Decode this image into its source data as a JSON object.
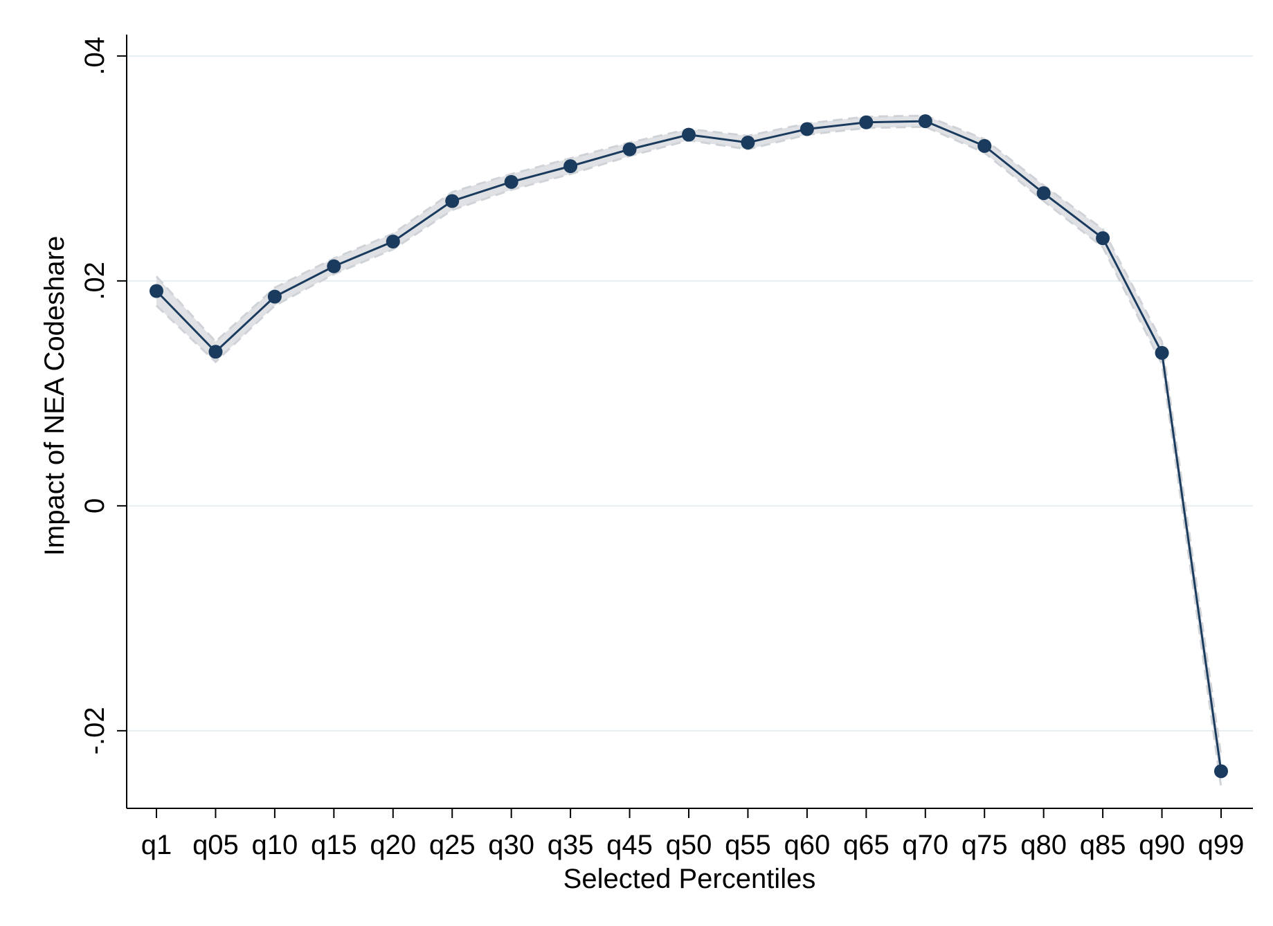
{
  "chart_data": {
    "type": "line",
    "title": "",
    "xlabel": "Selected Percentiles",
    "ylabel": "Impact of NEA Codeshare",
    "categories": [
      "q1",
      "q05",
      "q10",
      "q15",
      "q20",
      "q25",
      "q30",
      "q35",
      "q45",
      "q50",
      "q55",
      "q60",
      "q65",
      "q70",
      "q75",
      "q80",
      "q85",
      "q90",
      "q99"
    ],
    "series": [
      {
        "values": [
          0.0191,
          0.0137,
          0.0186,
          0.0213,
          0.0235,
          0.0271,
          0.0288,
          0.0302,
          0.0317,
          0.033,
          0.0323,
          0.0335,
          0.0341,
          0.0342,
          0.032,
          0.0278,
          0.0238,
          0.0136,
          -0.0236
        ],
        "ci_lower": [
          0.0178,
          0.0128,
          0.0178,
          0.0206,
          0.0228,
          0.0263,
          0.0281,
          0.0295,
          0.0311,
          0.0325,
          0.0317,
          0.033,
          0.0336,
          0.0337,
          0.0314,
          0.0271,
          0.023,
          0.0126,
          -0.025
        ],
        "ci_upper": [
          0.0204,
          0.0146,
          0.0194,
          0.022,
          0.0242,
          0.0279,
          0.0295,
          0.0309,
          0.0323,
          0.0335,
          0.0329,
          0.034,
          0.0346,
          0.0347,
          0.0326,
          0.0285,
          0.0246,
          0.0146,
          -0.0222
        ]
      }
    ],
    "yticks": [
      -0.02,
      0,
      0.02,
      0.04
    ],
    "ytick_labels": [
      "-.02",
      "0",
      ".02",
      ".04"
    ],
    "ylim": [
      -0.0269,
      0.0419
    ],
    "grid": true,
    "colors": {
      "line": "#1a3b5e",
      "marker": "#1a3b5e",
      "band": "#d9dcdf",
      "grid": "#e6eef2"
    }
  }
}
